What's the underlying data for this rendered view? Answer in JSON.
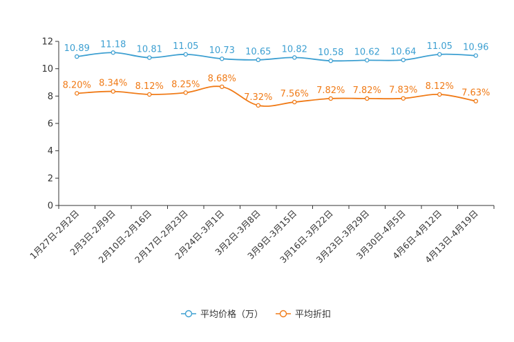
{
  "chart_data": {
    "type": "line",
    "categories": [
      "1月27日-2月2日",
      "2月3日-2月9日",
      "2月10日-2月16日",
      "2月17日-2月23日",
      "2月24日-3月1日",
      "3月2日-3月8日",
      "3月9日-3月15日",
      "3月16日-3月22日",
      "3月23日-3月29日",
      "3月30日-4月5日",
      "4月6日-4月12日",
      "4月13日-4月19日"
    ],
    "ylim": [
      0,
      12
    ],
    "yticks": [
      0,
      2,
      4,
      6,
      8,
      10,
      12
    ],
    "series": [
      {
        "name": "平均价格（万）",
        "color": "#3c9fd1",
        "values": [
          10.89,
          11.18,
          10.81,
          11.05,
          10.73,
          10.65,
          10.82,
          10.58,
          10.62,
          10.64,
          11.05,
          10.96
        ],
        "labels": [
          "10.89",
          "11.18",
          "10.81",
          "11.05",
          "10.73",
          "10.65",
          "10.82",
          "10.58",
          "10.62",
          "10.64",
          "11.05",
          "10.96"
        ]
      },
      {
        "name": "平均折扣",
        "color": "#f07a16",
        "values": [
          8.2,
          8.34,
          8.12,
          8.25,
          8.68,
          7.32,
          7.56,
          7.82,
          7.82,
          7.83,
          8.12,
          7.63
        ],
        "labels": [
          "8.20%",
          "8.34%",
          "8.12%",
          "8.25%",
          "8.68%",
          "7.32%",
          "7.56%",
          "7.82%",
          "7.82%",
          "7.83%",
          "8.12%",
          "7.63%"
        ]
      }
    ],
    "legend": [
      "平均价格（万）",
      "平均折扣"
    ],
    "legend_position": "bottom-center"
  }
}
